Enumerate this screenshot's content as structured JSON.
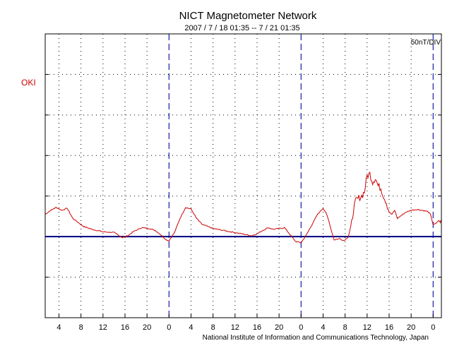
{
  "chart_data": {
    "type": "line",
    "title": "NICT Magnetometer Network",
    "subtitle": "2007 / 7 / 18   01:35 --  7 / 21   01:35",
    "scale_label": "50nT/DIV",
    "station": "OKI",
    "credit": "National Institute of Information and Communications Technology, Japan",
    "x_unit": "hours from 2007-07-18 00:00",
    "xlim": [
      1.5,
      73.5
    ],
    "ylim": [
      -2.0,
      5.0
    ],
    "y_unit": "divisions relative to OKI baseline (50 nT per division)",
    "day_boundaries": [
      24,
      48,
      72
    ],
    "x_ticks": [
      4,
      8,
      12,
      16,
      20,
      24,
      28,
      32,
      36,
      40,
      44,
      48,
      52,
      56,
      60,
      64,
      68,
      72
    ],
    "x_tick_labels": [
      "4",
      "8",
      "12",
      "16",
      "20",
      "0",
      "4",
      "8",
      "12",
      "16",
      "20",
      "0",
      "4",
      "8",
      "12",
      "16",
      "20",
      "0"
    ],
    "y_gridlines": [
      -1,
      0,
      1,
      2,
      3,
      4
    ],
    "baseline": 0,
    "series": [
      {
        "name": "OKI",
        "color": "#cc0000",
        "x": [
          1.5,
          2.5,
          3.5,
          4.5,
          5.5,
          6.5,
          7.5,
          8.5,
          10,
          12,
          14,
          15.5,
          16.5,
          17.5,
          19,
          20.5,
          21.5,
          22.5,
          23.5,
          24,
          25,
          26,
          27,
          28,
          29,
          30,
          32,
          34,
          36,
          38,
          39,
          40,
          41,
          42,
          43,
          44,
          45,
          46,
          47,
          48,
          48.5,
          49,
          50,
          51,
          52,
          52.5,
          53,
          53.5,
          54,
          55,
          55.8,
          56.6,
          57.2,
          57.5,
          58,
          59,
          59.5,
          60,
          60.5,
          61,
          61.5,
          62,
          62.5,
          63,
          63.5,
          64,
          64.5,
          65,
          65.5,
          66,
          67,
          68,
          69,
          70,
          71,
          71.5,
          72,
          72.5,
          73,
          73.3,
          73.5
        ],
        "values": [
          0.55,
          0.65,
          0.72,
          0.65,
          0.7,
          0.45,
          0.35,
          0.25,
          0.18,
          0.12,
          0.1,
          -0.02,
          0.02,
          0.12,
          0.22,
          0.2,
          0.15,
          0.05,
          -0.08,
          -0.1,
          0.1,
          0.45,
          0.72,
          0.68,
          0.45,
          0.3,
          0.2,
          0.15,
          0.1,
          0.05,
          0.02,
          0.07,
          0.15,
          0.22,
          0.18,
          0.2,
          0.22,
          0.05,
          -0.12,
          -0.15,
          -0.05,
          0.05,
          0.3,
          0.55,
          0.7,
          0.6,
          0.4,
          0.15,
          -0.08,
          -0.05,
          -0.1,
          0.0,
          0.35,
          0.65,
          0.9,
          1.0,
          1.1,
          1.5,
          1.55,
          1.35,
          1.45,
          1.25,
          1.2,
          1.0,
          0.85,
          0.6,
          0.55,
          0.65,
          0.45,
          0.5,
          0.6,
          0.65,
          0.67,
          0.65,
          0.62,
          0.55,
          0.3,
          0.32,
          0.4,
          0.35,
          0.42
        ]
      }
    ]
  }
}
